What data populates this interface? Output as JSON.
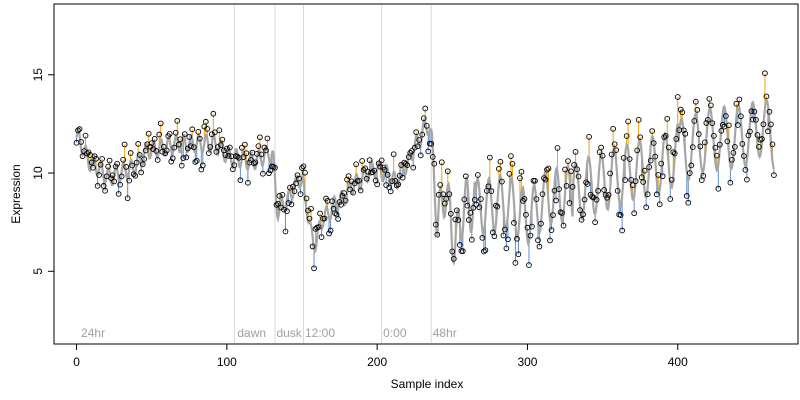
{
  "chart_data": {
    "type": "scatter",
    "xlabel": "Sample index",
    "ylabel": "Expression",
    "xlim": [
      -15,
      480
    ],
    "ylim": [
      1.3,
      18.6
    ],
    "xticks": [
      0,
      100,
      200,
      300,
      400
    ],
    "yticks": [
      5,
      10,
      15
    ],
    "grid": false,
    "colors": {
      "fit_line": "#a6a6a6",
      "residual_above": "#f2a300",
      "residual_below": "#5b8ed1",
      "divider": "#d9d9d9",
      "region_label": "#a0a0a0",
      "point": "#000000"
    },
    "region_labels": [
      {
        "text": "24hr",
        "x": 3
      },
      {
        "text": "dawn",
        "x": 107
      },
      {
        "text": "dusk",
        "x": 133
      },
      {
        "text": "12:00",
        "x": 152
      },
      {
        "text": "0:00",
        "x": 204
      },
      {
        "text": "48hr",
        "x": 237
      }
    ],
    "dividers": [
      105,
      132,
      151,
      203,
      236
    ],
    "anchors": [
      [
        0,
        11.8
      ],
      [
        10,
        10.5
      ],
      [
        22,
        9.8
      ],
      [
        35,
        10.2
      ],
      [
        50,
        11.2
      ],
      [
        70,
        11.5
      ],
      [
        90,
        11.5
      ],
      [
        104,
        10.8
      ],
      [
        116,
        10.6
      ],
      [
        130,
        11.0
      ],
      [
        134,
        8.1
      ],
      [
        140,
        8.6
      ],
      [
        146,
        9.4
      ],
      [
        150,
        9.8
      ],
      [
        152,
        8.5
      ],
      [
        158,
        6.4
      ],
      [
        165,
        7.8
      ],
      [
        175,
        8.6
      ],
      [
        186,
        9.5
      ],
      [
        198,
        10.2
      ],
      [
        205,
        10.0
      ],
      [
        212,
        9.6
      ],
      [
        220,
        10.4
      ],
      [
        226,
        11.5
      ],
      [
        233,
        12.4
      ],
      [
        236,
        12.2
      ],
      [
        240,
        6.8
      ],
      [
        244,
        9.2
      ],
      [
        248,
        8.0
      ],
      [
        252,
        6.4
      ],
      [
        258,
        8.4
      ],
      [
        270,
        8.3
      ],
      [
        285,
        8.5
      ],
      [
        300,
        7.8
      ],
      [
        315,
        8.8
      ],
      [
        330,
        9.0
      ],
      [
        345,
        9.4
      ],
      [
        360,
        9.8
      ],
      [
        375,
        10.2
      ],
      [
        390,
        10.5
      ],
      [
        405,
        11.2
      ],
      [
        420,
        11.7
      ],
      [
        435,
        11.8
      ],
      [
        450,
        12.0
      ],
      [
        456,
        12.5
      ],
      [
        462,
        11.8
      ]
    ],
    "wiggles": [
      {
        "from": 0,
        "to": 235,
        "period": 5,
        "amp": 0.45
      },
      {
        "from": 240,
        "to": 265,
        "period": 6,
        "amp": 1.4
      },
      {
        "from": 265,
        "to": 330,
        "period": 7.5,
        "amp": 1.4
      },
      {
        "from": 330,
        "to": 400,
        "period": 8.5,
        "amp": 1.5
      },
      {
        "from": 400,
        "to": 466,
        "period": 9.5,
        "amp": 1.6
      }
    ],
    "x_points": {
      "start": 0,
      "end": 464,
      "step": 1
    }
  }
}
